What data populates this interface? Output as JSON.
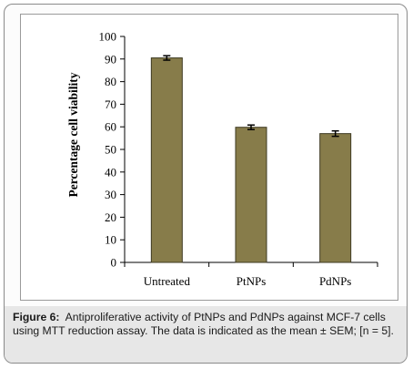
{
  "figure": {
    "caption_label": "Figure 6:",
    "caption_text": "Antiproliferative activity of PtNPs and PdNPs against MCF-7 cells using MTT reduction assay. The data is indicated as the mean ± SEM; [n = 5]."
  },
  "chart_data": {
    "type": "bar",
    "categories": [
      "Untreated",
      "PtNPs",
      "PdNPs"
    ],
    "values": [
      90.5,
      59.8,
      57.0
    ],
    "errors": [
      1.0,
      1.0,
      1.2
    ],
    "ylabel": "Percentage cell viability",
    "xlabel": "",
    "ylim": [
      0,
      100
    ],
    "yticks": [
      0,
      10,
      20,
      30,
      40,
      50,
      60,
      70,
      80,
      90,
      100
    ],
    "grid": false,
    "colors": {
      "bar_fill": "#877c4a",
      "bar_stroke": "#3e3a22",
      "axis": "#000000"
    }
  }
}
